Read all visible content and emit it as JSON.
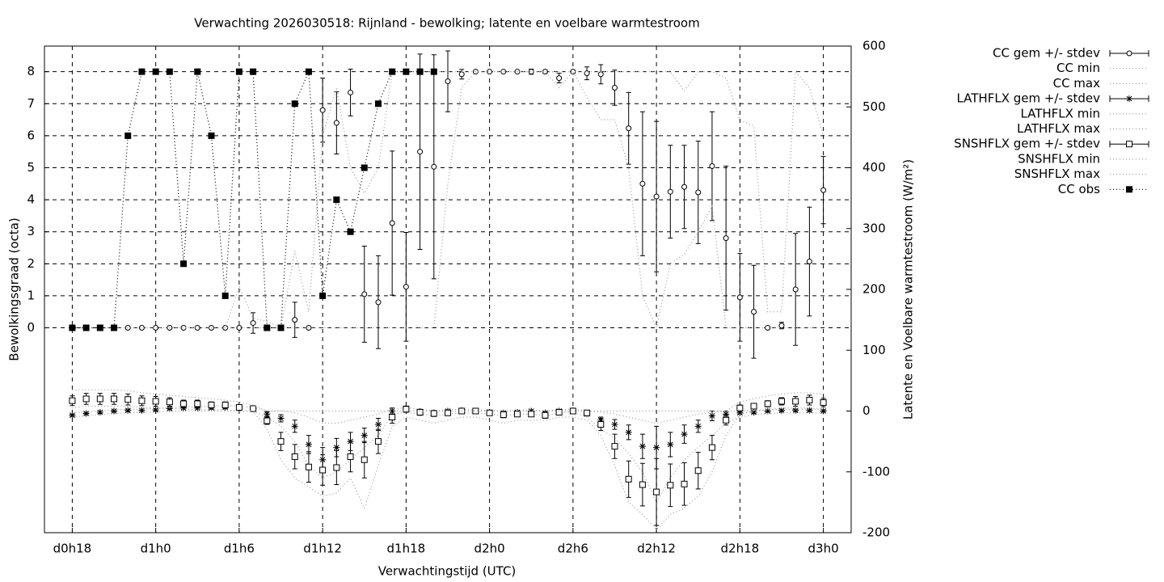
{
  "chart_data": {
    "type": "line",
    "title": "Verwachting 2026030518: Rijnland - bewolking; latente en voelbare warmtestroom",
    "xlabel": "Verwachtingstijd (UTC)",
    "ylabel": "Bewolkingsgraad (octa)",
    "y2label": "Latente en Voelbare warmtestroom (W/m²)",
    "grid": true,
    "legend": "outside-right-top",
    "xlim": [
      16,
      74
    ],
    "xticks": [
      {
        "value": 18,
        "label": "d0h18"
      },
      {
        "value": 24,
        "label": "d1h0"
      },
      {
        "value": 30,
        "label": "d1h6"
      },
      {
        "value": 36,
        "label": "d1h12"
      },
      {
        "value": 42,
        "label": "d1h18"
      },
      {
        "value": 48,
        "label": "d2h0"
      },
      {
        "value": 54,
        "label": "d2h6"
      },
      {
        "value": 60,
        "label": "d2h12"
      },
      {
        "value": 66,
        "label": "d2h18"
      },
      {
        "value": 72,
        "label": "d3h0"
      }
    ],
    "ylim": [
      -6.4,
      8.8
    ],
    "yticks": [
      0,
      1,
      2,
      3,
      4,
      5,
      6,
      7,
      8
    ],
    "y2lim": [
      -200,
      600
    ],
    "y2ticks": [
      -200,
      -100,
      0,
      100,
      200,
      300,
      400,
      500,
      600
    ],
    "x": [
      18,
      19,
      20,
      21,
      22,
      23,
      24,
      25,
      26,
      27,
      28,
      29,
      30,
      31,
      32,
      33,
      34,
      35,
      36,
      37,
      38,
      39,
      40,
      41,
      42,
      43,
      44,
      45,
      46,
      47,
      48,
      49,
      50,
      51,
      52,
      53,
      54,
      55,
      56,
      57,
      58,
      59,
      60,
      61,
      62,
      63,
      64,
      65,
      66,
      67,
      68,
      69,
      70,
      71,
      72
    ],
    "series": [
      {
        "name": "CC gem +/- stdev",
        "color": "#000000",
        "axis": "y",
        "marker": "circle",
        "values": [
          0,
          0,
          0,
          0,
          0,
          0,
          0,
          0,
          0,
          0,
          0,
          0,
          0,
          0.15,
          0,
          0,
          0.25,
          0,
          6.8,
          6.4,
          7.35,
          1.05,
          0.8,
          3.27,
          1.28,
          5.5,
          5.03,
          7.7,
          7.92,
          8,
          8,
          8,
          8,
          8,
          8,
          7.8,
          8,
          7.95,
          7.92,
          7.5,
          6.23,
          4.5,
          4.1,
          4.25,
          4.4,
          4.23,
          5.05,
          2.8,
          0.95,
          0.5,
          0,
          0.07,
          1.2,
          2.07,
          4.3
        ],
        "errors": [
          0,
          0,
          0,
          0,
          0,
          0,
          0,
          0,
          0,
          0,
          0,
          0,
          0,
          0.32,
          0,
          0,
          0.55,
          0,
          1,
          0.97,
          0.73,
          1.5,
          1.45,
          2.25,
          1.7,
          3.05,
          3.5,
          0.95,
          0.15,
          0,
          0,
          0,
          0,
          0.08,
          0.05,
          0.15,
          0.05,
          0.2,
          0.3,
          0.55,
          1.12,
          2.25,
          2.35,
          1.45,
          1.3,
          1.6,
          1.7,
          2.25,
          1.37,
          1.45,
          0,
          0.1,
          1.75,
          1.7,
          1.05
        ]
      },
      {
        "name": "CC min",
        "color": "#999999",
        "axis": "y",
        "dash": "dotted",
        "values": [
          0,
          0,
          0,
          0,
          0,
          0,
          0,
          0,
          0,
          0,
          0,
          0,
          0,
          0,
          0,
          0,
          0,
          0,
          0,
          0,
          0,
          0,
          0,
          0,
          0,
          0,
          0,
          4.5,
          7.5,
          8,
          8,
          8,
          8,
          8,
          8,
          7.5,
          8,
          7.2,
          6.5,
          6.5,
          5,
          1,
          0,
          2,
          2.3,
          3,
          3.8,
          0,
          0,
          0,
          0,
          0,
          0,
          0,
          0
        ]
      },
      {
        "name": "CC max",
        "color": "#999999",
        "axis": "y",
        "dash": "dotted",
        "values": [
          0,
          0,
          0,
          0,
          0,
          0,
          0,
          0,
          0,
          0,
          0,
          0,
          1.3,
          0.3,
          0.2,
          0,
          2.4,
          0.5,
          6,
          7.5,
          5,
          4.2,
          5,
          8,
          8,
          8,
          8,
          8,
          8,
          8,
          8,
          8,
          8,
          8,
          8,
          8,
          8,
          8,
          8,
          8,
          8,
          8,
          8,
          8,
          7.4,
          8,
          8,
          7.8,
          6.5,
          6.3,
          0.5,
          0.5,
          8,
          7.5,
          6
        ]
      },
      {
        "name": "LATHFLX gem +/- stdev",
        "color": "#000000",
        "axis": "y2",
        "marker": "star",
        "values": [
          -7,
          -4,
          -2,
          0,
          1,
          1,
          2,
          4,
          5,
          5,
          5,
          6,
          5,
          3,
          -5,
          -12,
          -25,
          -55,
          -80,
          -60,
          -50,
          -40,
          -22,
          0,
          5,
          -1,
          -3,
          0,
          1,
          0,
          -2,
          -3,
          -2,
          0,
          -3,
          0,
          1,
          -5,
          -15,
          -22,
          -35,
          -58,
          -60,
          -55,
          -38,
          -25,
          -8,
          -5,
          -3,
          -2,
          0,
          1,
          1,
          1,
          0
        ],
        "errors": [
          2,
          2,
          2,
          2,
          2,
          2,
          2,
          2,
          2,
          2,
          2,
          2,
          2,
          2,
          4,
          6,
          10,
          15,
          20,
          15,
          15,
          12,
          10,
          5,
          2,
          2,
          2,
          2,
          2,
          2,
          2,
          2,
          2,
          2,
          2,
          2,
          2,
          2,
          5,
          8,
          12,
          20,
          35,
          20,
          15,
          10,
          8,
          5,
          2,
          2,
          2,
          2,
          2,
          2,
          2
        ]
      },
      {
        "name": "LATHFLX min",
        "color": "#999999",
        "axis": "y2",
        "dash": "dotted",
        "values": [
          -10,
          -8,
          -6,
          -4,
          -3,
          -2,
          -2,
          0,
          0,
          0,
          0,
          0,
          0,
          0,
          -10,
          -25,
          -50,
          -90,
          -110,
          -100,
          -80,
          -60,
          -40,
          -5,
          -2,
          -5,
          -8,
          -5,
          -3,
          -3,
          -5,
          -8,
          -5,
          -5,
          -8,
          -3,
          -2,
          -10,
          -30,
          -45,
          -70,
          -100,
          -150,
          -110,
          -80,
          -60,
          -40,
          -20,
          -10,
          -6,
          -4,
          -3,
          -3,
          -3,
          -3
        ]
      },
      {
        "name": "LATHFLX max",
        "color": "#999999",
        "axis": "y2",
        "dash": "dotted",
        "values": [
          -3,
          -1,
          0,
          2,
          3,
          3,
          4,
          6,
          7,
          7,
          8,
          9,
          8,
          6,
          0,
          0,
          -3,
          -10,
          -20,
          -20,
          -15,
          -10,
          -5,
          3,
          6,
          2,
          0,
          2,
          3,
          2,
          1,
          0,
          1,
          2,
          0,
          2,
          3,
          0,
          -2,
          -5,
          -10,
          -15,
          -20,
          -15,
          -10,
          -5,
          -2,
          0,
          0,
          1,
          2,
          3,
          3,
          3,
          2
        ]
      },
      {
        "name": "SNSHFLX gem +/- stdev",
        "color": "#000000",
        "axis": "y2",
        "marker": "square",
        "values": [
          17,
          20,
          20,
          20,
          19,
          17,
          16,
          15,
          12,
          12,
          10,
          10,
          6,
          4,
          -16,
          -50,
          -75,
          -92,
          -97,
          -93,
          -75,
          -80,
          -50,
          -10,
          3,
          -2,
          -4,
          -3,
          0,
          0,
          -3,
          -6,
          -5,
          -5,
          -7,
          -2,
          0,
          -3,
          -22,
          -58,
          -112,
          -121,
          -133,
          -122,
          -120,
          -98,
          -60,
          -15,
          5,
          8,
          12,
          16,
          16,
          18,
          14
        ],
        "errors": [
          8,
          9,
          9,
          9,
          9,
          8,
          8,
          7,
          6,
          6,
          5,
          5,
          4,
          4,
          6,
          15,
          20,
          25,
          25,
          28,
          25,
          30,
          20,
          10,
          5,
          5,
          5,
          4,
          3,
          3,
          4,
          5,
          4,
          4,
          5,
          3,
          3,
          4,
          10,
          20,
          30,
          35,
          55,
          35,
          35,
          30,
          20,
          8,
          5,
          4,
          5,
          6,
          8,
          8,
          7
        ]
      },
      {
        "name": "SNSHFLX min",
        "color": "#999999",
        "axis": "y2",
        "dash": "dotted",
        "values": [
          5,
          8,
          8,
          8,
          8,
          6,
          5,
          5,
          3,
          3,
          2,
          2,
          0,
          0,
          -30,
          -80,
          -110,
          -125,
          -140,
          -135,
          -110,
          -160,
          -90,
          -25,
          -10,
          -15,
          -20,
          -15,
          -10,
          -10,
          -15,
          -20,
          -15,
          -15,
          -15,
          -10,
          -10,
          -15,
          -40,
          -90,
          -150,
          -170,
          -195,
          -170,
          -160,
          -140,
          -100,
          -40,
          -5,
          0,
          2,
          5,
          5,
          5,
          3
        ]
      },
      {
        "name": "SNSHFLX max",
        "color": "#999999",
        "axis": "y2",
        "dash": "dotted",
        "values": [
          35,
          35,
          35,
          35,
          33,
          30,
          28,
          26,
          24,
          22,
          20,
          18,
          15,
          10,
          0,
          0,
          0,
          0,
          0,
          0,
          0,
          0,
          0,
          0,
          0,
          0,
          0,
          0,
          0,
          0,
          0,
          0,
          0,
          0,
          0,
          0,
          0,
          0,
          0,
          0,
          0,
          0,
          0,
          0,
          0,
          0,
          0,
          0,
          15,
          20,
          25,
          28,
          30,
          30,
          28
        ]
      },
      {
        "name": "CC obs",
        "color": "#000000",
        "axis": "y",
        "marker": "filled-square",
        "dash": "dotted",
        "values": [
          0,
          0,
          0,
          0,
          6,
          8,
          8,
          8,
          2,
          8,
          6,
          1,
          8,
          8,
          0,
          0,
          7,
          8,
          1,
          4,
          3,
          5,
          7,
          8,
          8,
          8,
          8,
          null,
          null,
          null,
          null,
          null,
          null,
          null,
          null,
          null,
          null,
          null,
          null,
          null,
          null,
          null,
          null,
          null,
          null,
          null,
          null,
          null,
          null,
          null,
          null,
          null,
          null,
          null,
          null
        ]
      }
    ]
  }
}
